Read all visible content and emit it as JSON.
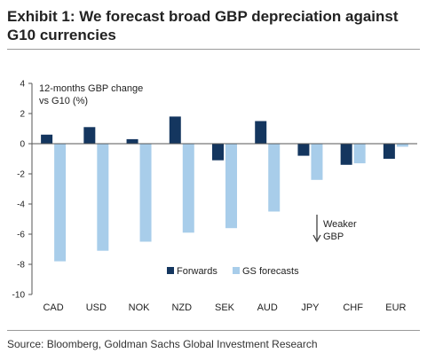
{
  "title": "Exhibit 1: We forecast broad GBP depreciation against G10 currencies",
  "source": "Source: Bloomberg, Goldman Sachs Global Investment Research",
  "colors": {
    "forwards": "#14365f",
    "gs_forecasts": "#a8cdea",
    "axis": "#555555"
  },
  "chart_data": {
    "type": "bar",
    "title": "",
    "ylabel_lines": [
      "12-months GBP change",
      "vs G10 (%)"
    ],
    "xlabel": "",
    "ylim": [
      -10,
      4
    ],
    "yticks": [
      4,
      2,
      0,
      -2,
      -4,
      -6,
      -8,
      -10
    ],
    "categories": [
      "CAD",
      "USD",
      "NOK",
      "NZD",
      "SEK",
      "AUD",
      "JPY",
      "CHF",
      "EUR"
    ],
    "series": [
      {
        "name": "Forwards",
        "values": [
          0.6,
          1.1,
          0.3,
          1.8,
          -1.1,
          1.5,
          -0.8,
          -1.4,
          -1.0
        ]
      },
      {
        "name": "GS forecasts",
        "values": [
          -7.8,
          -7.1,
          -6.5,
          -5.9,
          -5.6,
          -4.5,
          -2.4,
          -1.3,
          -0.2
        ]
      }
    ],
    "annotation": [
      "Weaker",
      "GBP"
    ],
    "legend_position": "bottom-center"
  }
}
